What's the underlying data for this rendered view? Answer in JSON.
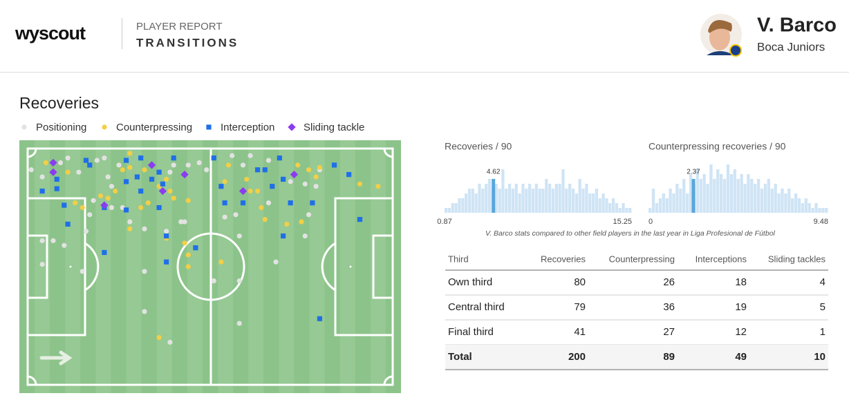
{
  "header": {
    "logo": "wyscout",
    "report_label": "PLAYER REPORT",
    "report_title": "TRANSITIONS",
    "player_name": "V. Barco",
    "team": "Boca Juniors"
  },
  "section_title": "Recoveries",
  "pitch": {
    "series": [
      {
        "name": "Positioning",
        "color": "#e2e2e2",
        "shape": "circle",
        "points": [
          [
            1,
            9
          ],
          [
            4,
            12
          ],
          [
            9,
            6
          ],
          [
            11,
            4
          ],
          [
            14,
            10
          ],
          [
            19,
            5
          ],
          [
            21,
            4
          ],
          [
            22,
            12
          ],
          [
            23,
            16
          ],
          [
            17,
            28
          ],
          [
            16,
            35
          ],
          [
            4,
            39
          ],
          [
            7,
            39
          ],
          [
            10,
            41
          ],
          [
            4,
            49
          ],
          [
            15,
            52
          ],
          [
            32,
            52
          ],
          [
            32,
            69
          ],
          [
            39,
            82
          ],
          [
            58,
            74
          ],
          [
            68,
            48
          ],
          [
            58,
            56
          ],
          [
            43,
            31
          ],
          [
            42,
            31
          ],
          [
            38,
            35
          ],
          [
            32,
            34
          ],
          [
            44,
            7
          ],
          [
            47,
            6
          ],
          [
            49,
            9
          ],
          [
            56,
            3
          ],
          [
            59,
            7
          ],
          [
            61,
            3
          ],
          [
            66,
            5
          ],
          [
            72,
            14
          ],
          [
            76,
            15
          ],
          [
            80,
            9
          ],
          [
            79,
            16
          ],
          [
            77,
            28
          ],
          [
            66,
            23
          ],
          [
            57,
            28
          ],
          [
            54,
            29
          ],
          [
            76,
            37
          ],
          [
            58,
            37
          ],
          [
            26,
            25
          ],
          [
            28,
            31
          ],
          [
            39,
            10
          ],
          [
            40,
            7
          ],
          [
            25,
            7
          ],
          [
            23,
            25
          ],
          [
            18,
            22
          ],
          [
            51,
            56
          ]
        ]
      },
      {
        "name": "Counterpressing",
        "color": "#f2cf48",
        "shape": "circle",
        "points": [
          [
            5,
            6
          ],
          [
            11,
            10
          ],
          [
            15,
            25
          ],
          [
            28,
            8
          ],
          [
            26,
            9
          ],
          [
            28,
            2
          ],
          [
            40,
            21
          ],
          [
            44,
            22
          ],
          [
            28,
            34
          ],
          [
            24,
            18
          ],
          [
            22,
            21
          ],
          [
            31,
            25
          ],
          [
            33,
            23
          ],
          [
            36,
            16
          ],
          [
            38,
            13
          ],
          [
            39,
            18
          ],
          [
            43,
            40
          ],
          [
            44,
            45
          ],
          [
            44,
            50
          ],
          [
            53,
            48
          ],
          [
            54,
            14
          ],
          [
            55,
            7
          ],
          [
            60,
            13
          ],
          [
            61,
            18
          ],
          [
            63,
            18
          ],
          [
            74,
            7
          ],
          [
            77,
            9
          ],
          [
            79,
            12
          ],
          [
            80,
            8
          ],
          [
            91,
            15
          ],
          [
            96,
            16
          ],
          [
            75,
            31
          ],
          [
            71,
            32
          ],
          [
            65,
            30
          ],
          [
            64,
            25
          ],
          [
            38,
            38
          ],
          [
            36,
            80
          ],
          [
            32,
            9
          ],
          [
            13,
            23
          ],
          [
            20,
            20
          ]
        ]
      },
      {
        "name": "Interception",
        "color": "#1f6fe8",
        "shape": "square",
        "points": [
          [
            16,
            5
          ],
          [
            17,
            7
          ],
          [
            8,
            13
          ],
          [
            4,
            18
          ],
          [
            8,
            17
          ],
          [
            10,
            24
          ],
          [
            11,
            32
          ],
          [
            21,
            44
          ],
          [
            27,
            5
          ],
          [
            27,
            14
          ],
          [
            31,
            4
          ],
          [
            30,
            12
          ],
          [
            34,
            13
          ],
          [
            31,
            18
          ],
          [
            36,
            10
          ],
          [
            36,
            25
          ],
          [
            27,
            26
          ],
          [
            21,
            25
          ],
          [
            38,
            48
          ],
          [
            38,
            37
          ],
          [
            46,
            42
          ],
          [
            51,
            4
          ],
          [
            63,
            9
          ],
          [
            65,
            9
          ],
          [
            70,
            13
          ],
          [
            69,
            4
          ],
          [
            53,
            16
          ],
          [
            54,
            23
          ],
          [
            59,
            23
          ],
          [
            67,
            16
          ],
          [
            72,
            23
          ],
          [
            78,
            23
          ],
          [
            84,
            7
          ],
          [
            88,
            11
          ],
          [
            70,
            37
          ],
          [
            80,
            72
          ],
          [
            91,
            30
          ],
          [
            40,
            4
          ],
          [
            37,
            15
          ]
        ]
      },
      {
        "name": "Sliding tackle",
        "color": "#8a3cf0",
        "shape": "diamond",
        "points": [
          [
            7,
            6
          ],
          [
            7,
            10
          ],
          [
            34,
            7
          ],
          [
            43,
            11
          ],
          [
            21,
            24
          ],
          [
            37,
            18
          ],
          [
            59,
            18
          ],
          [
            73,
            11
          ]
        ]
      }
    ]
  },
  "histograms": [
    {
      "title": "Recoveries / 90",
      "min": 0.87,
      "max": 15.25,
      "player_value": 4.62,
      "player_count": 7,
      "ylim": [
        0,
        10
      ],
      "counts": [
        1,
        1,
        2,
        2,
        3,
        3,
        4,
        5,
        5,
        4,
        6,
        5,
        6,
        7,
        5,
        6,
        5,
        9,
        5,
        6,
        5,
        6,
        4,
        6,
        5,
        6,
        5,
        6,
        5,
        5,
        7,
        6,
        5,
        6,
        6,
        9,
        5,
        6,
        5,
        4,
        7,
        5,
        6,
        4,
        4,
        5,
        3,
        4,
        3,
        2,
        3,
        2,
        1,
        2,
        1,
        1
      ]
    },
    {
      "title": "Counterpressing recoveries / 90",
      "min": 0,
      "max": 9.48,
      "player_value": 2.37,
      "player_count": 7,
      "ylim": [
        0,
        10
      ],
      "counts": [
        1,
        5,
        2,
        3,
        4,
        3,
        5,
        4,
        6,
        5,
        7,
        4,
        8,
        6,
        9,
        7,
        8,
        6,
        10,
        7,
        9,
        8,
        7,
        10,
        8,
        9,
        7,
        8,
        6,
        8,
        7,
        6,
        7,
        5,
        6,
        7,
        5,
        6,
        4,
        5,
        4,
        5,
        3,
        4,
        3,
        2,
        3,
        2,
        1,
        2,
        1,
        1,
        1
      ]
    }
  ],
  "footnote": "V. Barco stats compared to other field players in the last year in Liga Profesional de Fútbol",
  "table": {
    "columns": [
      "Third",
      "Recoveries",
      "Counterpressing",
      "Interceptions",
      "Sliding tackles"
    ],
    "rows": [
      [
        "Own third",
        80,
        26,
        18,
        4
      ],
      [
        "Central third",
        79,
        36,
        19,
        5
      ],
      [
        "Final third",
        41,
        27,
        12,
        1
      ]
    ],
    "total": [
      "Total",
      200,
      89,
      49,
      10
    ]
  }
}
